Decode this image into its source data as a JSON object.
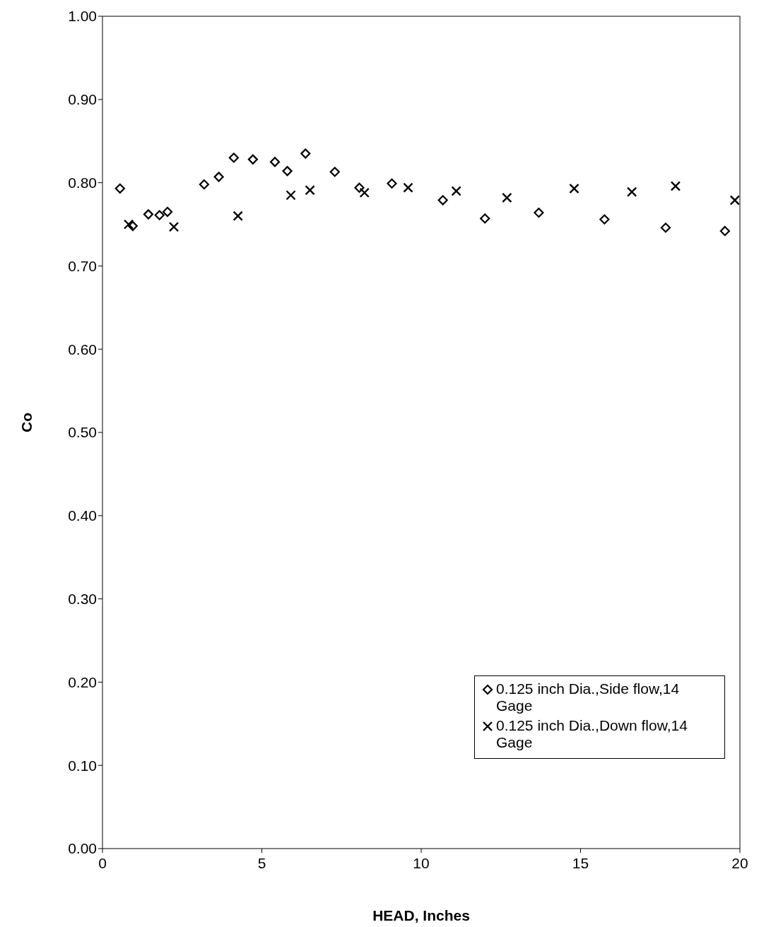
{
  "chart_data": {
    "type": "scatter",
    "xlabel": "HEAD, Inches",
    "ylabel": "Co",
    "xlim": [
      0,
      20
    ],
    "xticks": [
      0,
      5,
      10,
      15,
      20
    ],
    "ylim": [
      0,
      1
    ],
    "yticks": [
      {
        "value": 0,
        "label": "0.00"
      },
      {
        "value": 0.1,
        "label": "0.10"
      },
      {
        "value": 0.2,
        "label": "0.20"
      },
      {
        "value": 0.3,
        "label": "0.30"
      },
      {
        "value": 0.4,
        "label": "0.40"
      },
      {
        "value": 0.5,
        "label": "0.50"
      },
      {
        "value": 0.6,
        "label": "0.60"
      },
      {
        "value": 0.7,
        "label": "0.70"
      },
      {
        "value": 0.8,
        "label": "0.80"
      },
      {
        "value": 0.9,
        "label": "0.90"
      },
      {
        "value": 1,
        "label": "1.00"
      }
    ],
    "grid": false,
    "legend": "bottom right",
    "series": [
      {
        "name": "0.125 inch Dia.,Side flow,14 Gage",
        "color": "#000000",
        "marker": "diamond",
        "x": [
          0.55,
          0.95,
          1.44,
          1.79,
          2.04,
          3.19,
          3.65,
          4.12,
          4.72,
          5.41,
          5.8,
          6.37,
          7.29,
          8.06,
          9.08,
          10.68,
          12.0,
          13.69,
          15.75,
          17.67,
          19.53
        ],
        "values": [
          0.793,
          0.748,
          0.762,
          0.761,
          0.765,
          0.798,
          0.807,
          0.83,
          0.828,
          0.825,
          0.814,
          0.835,
          0.813,
          0.794,
          0.799,
          0.779,
          0.757,
          0.764,
          0.756,
          0.746,
          0.742
        ]
      },
      {
        "name": "0.125 inch Dia.,Down flow,14 Gage",
        "color": "#000000",
        "marker": "cross",
        "x": [
          0.82,
          2.24,
          4.25,
          5.91,
          6.51,
          8.22,
          9.59,
          11.1,
          12.69,
          14.8,
          16.61,
          17.98,
          19.84
        ],
        "values": [
          0.75,
          0.747,
          0.76,
          0.785,
          0.791,
          0.788,
          0.794,
          0.79,
          0.782,
          0.793,
          0.789,
          0.796,
          0.779
        ]
      }
    ]
  }
}
